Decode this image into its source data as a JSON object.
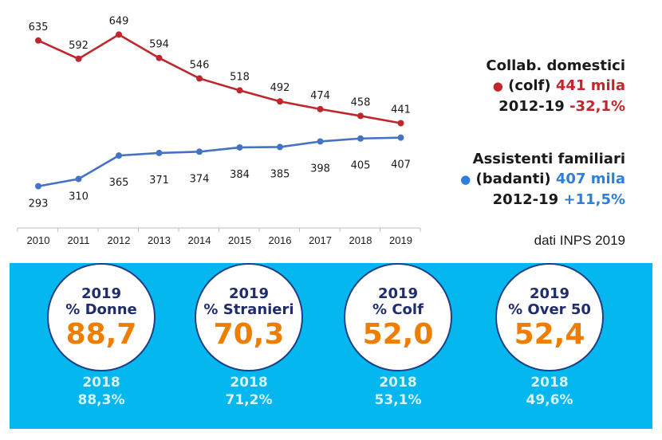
{
  "chart_data": {
    "type": "line",
    "categories": [
      "2010",
      "2011",
      "2012",
      "2013",
      "2014",
      "2015",
      "2016",
      "2017",
      "2018",
      "2019"
    ],
    "series": [
      {
        "name": "Collab. domestici (colf)",
        "color": "#c0272d",
        "values": [
          635,
          592,
          649,
          594,
          546,
          518,
          492,
          474,
          458,
          441
        ]
      },
      {
        "name": "Assistenti familiari (badanti)",
        "color": "#4472c4",
        "values": [
          293,
          310,
          365,
          371,
          374,
          384,
          385,
          398,
          405,
          407
        ]
      }
    ],
    "grid": false,
    "legend_position": "right"
  },
  "legend": {
    "colf": {
      "line1": "Collab. domestici",
      "label": "(colf)",
      "value": "441 mila",
      "period": "2012-19",
      "change": "-32,1%",
      "dot": "●"
    },
    "badanti": {
      "line1": "Assistenti familiari",
      "label": "(badanti)",
      "value": "407 mila",
      "period": "2012-19",
      "change": "+11,5%",
      "dot": "●"
    }
  },
  "source": "dati INPS 2019",
  "colors": {
    "colf": "#c0272d",
    "badanti": "#2f7fd8",
    "band": "#05b7ef",
    "value": "#ef7d00",
    "circle_text": "#1f2d6e"
  },
  "stats": [
    {
      "year": "2019",
      "label": "% Donne",
      "value": "88,7",
      "prev_year": "2018",
      "prev_value": "88,3%"
    },
    {
      "year": "2019",
      "label": "% Stranieri",
      "value": "70,3",
      "prev_year": "2018",
      "prev_value": "71,2%"
    },
    {
      "year": "2019",
      "label": "% Colf",
      "value": "52,0",
      "prev_year": "2018",
      "prev_value": "53,1%"
    },
    {
      "year": "2019",
      "label": "% Over 50",
      "value": "52,4",
      "prev_year": "2018",
      "prev_value": "49,6%"
    }
  ]
}
